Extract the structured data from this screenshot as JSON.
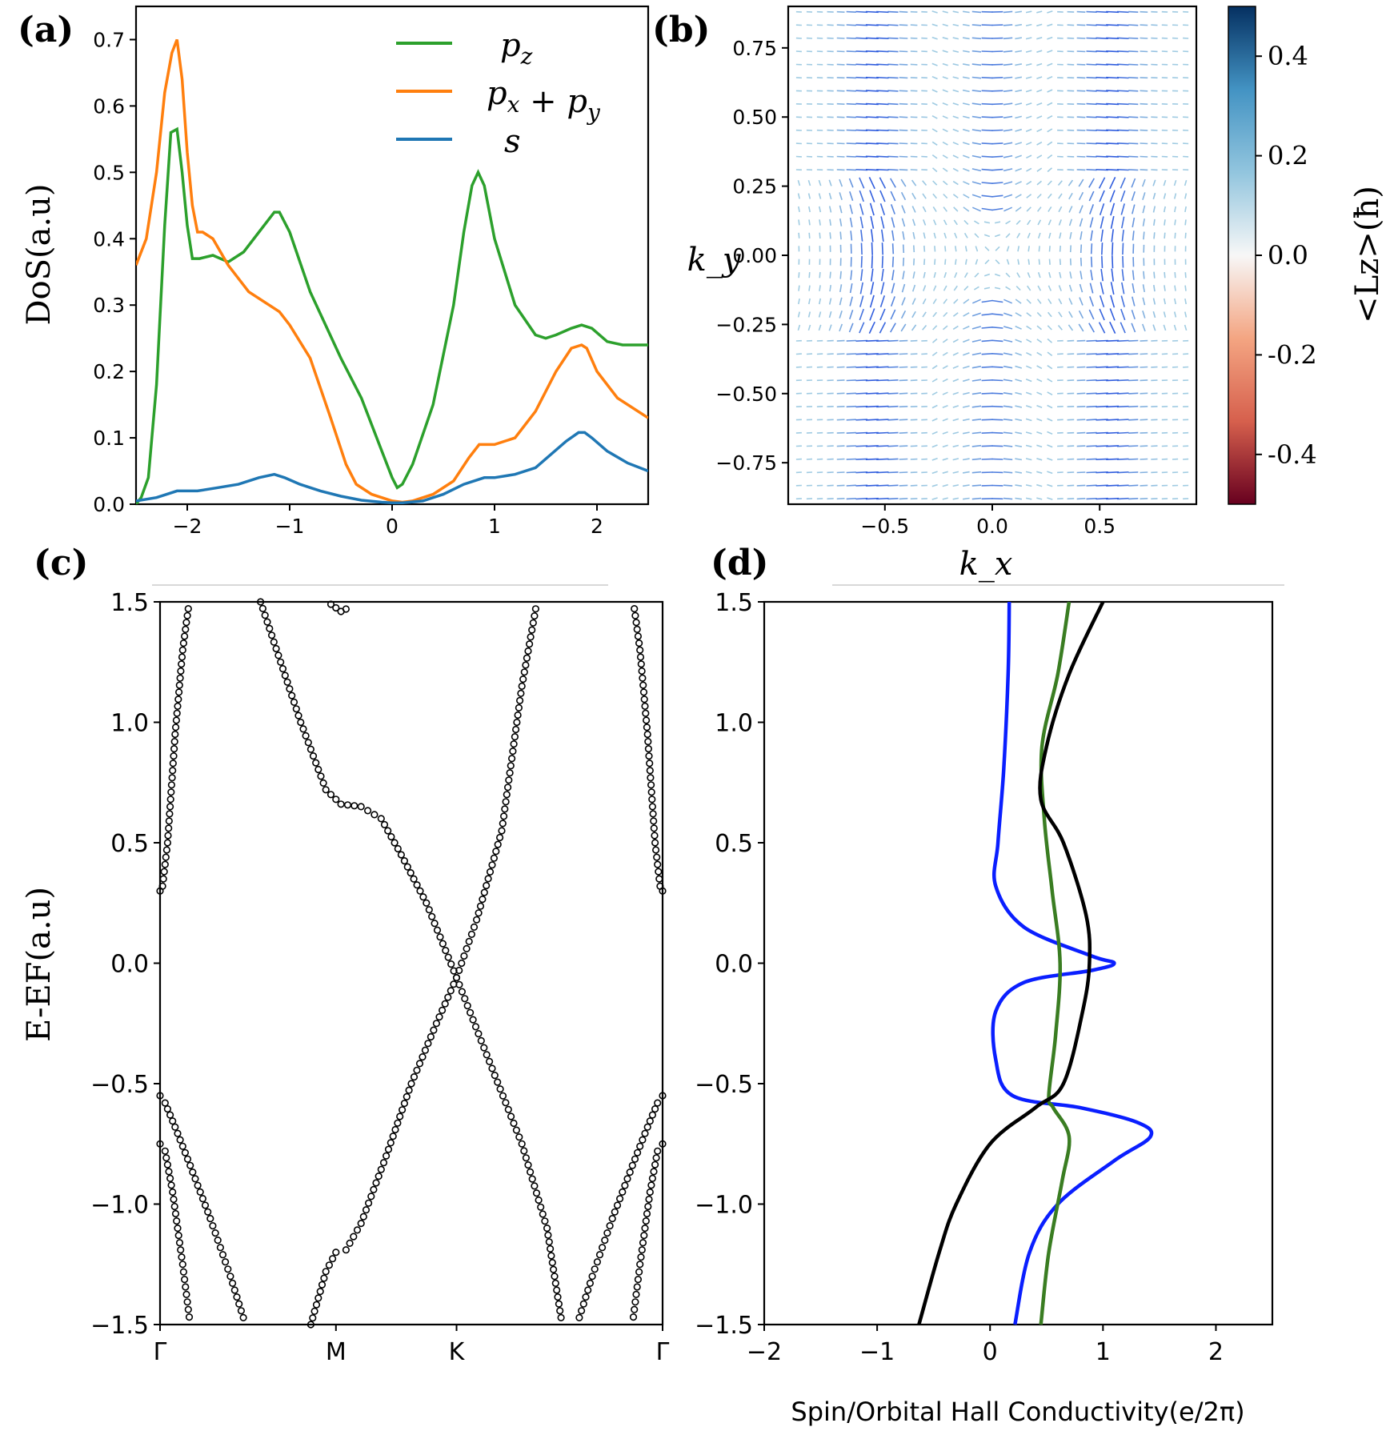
{
  "panel_labels": [
    "(a)",
    "(b)",
    "(c)",
    "(d)"
  ],
  "chart_data": [
    {
      "panel": "(a)",
      "type": "line",
      "xlabel": "",
      "ylabel": "DoS(a.u)",
      "xlim": [
        -2.5,
        2.5
      ],
      "ylim": [
        0,
        0.75
      ],
      "xticks": [
        -2,
        -1,
        0,
        1,
        2
      ],
      "xtick_labels": [
        "−2",
        "−1",
        "0",
        "1",
        "2"
      ],
      "yticks": [
        0,
        0.1,
        0.2,
        0.3,
        0.4,
        0.5,
        0.6,
        0.7
      ],
      "ytick_labels": [
        "0.0",
        "0.1",
        "0.2",
        "0.3",
        "0.4",
        "0.5",
        "0.6",
        "0.7"
      ],
      "legend": [
        "p_z",
        "p_x + p_y",
        "s"
      ],
      "legend_position": "top-right",
      "series": [
        {
          "name": "p_z",
          "color": "#2ca02c",
          "x": [
            -2.5,
            -2.45,
            -2.38,
            -2.3,
            -2.22,
            -2.16,
            -2.1,
            -2.05,
            -2.0,
            -1.95,
            -1.88,
            -1.75,
            -1.6,
            -1.45,
            -1.3,
            -1.15,
            -1.1,
            -1.0,
            -0.8,
            -0.5,
            -0.3,
            -0.1,
            0.0,
            0.05,
            0.1,
            0.2,
            0.4,
            0.6,
            0.7,
            0.78,
            0.84,
            0.9,
            1.0,
            1.2,
            1.4,
            1.5,
            1.6,
            1.75,
            1.85,
            1.95,
            2.1,
            2.25,
            2.4,
            2.5
          ],
          "values": [
            0.0,
            0.01,
            0.04,
            0.18,
            0.42,
            0.56,
            0.565,
            0.5,
            0.42,
            0.37,
            0.37,
            0.375,
            0.365,
            0.38,
            0.41,
            0.44,
            0.44,
            0.41,
            0.32,
            0.22,
            0.16,
            0.08,
            0.04,
            0.025,
            0.03,
            0.06,
            0.15,
            0.3,
            0.41,
            0.48,
            0.5,
            0.48,
            0.4,
            0.3,
            0.255,
            0.25,
            0.255,
            0.265,
            0.27,
            0.265,
            0.245,
            0.24,
            0.24,
            0.24
          ]
        },
        {
          "name": "p_x + p_y",
          "color": "#ff7f0e",
          "x": [
            -2.5,
            -2.4,
            -2.3,
            -2.22,
            -2.15,
            -2.1,
            -2.05,
            -2.0,
            -1.95,
            -1.9,
            -1.85,
            -1.75,
            -1.6,
            -1.4,
            -1.2,
            -1.1,
            -1.0,
            -0.8,
            -0.6,
            -0.45,
            -0.35,
            -0.2,
            0.0,
            0.1,
            0.2,
            0.4,
            0.6,
            0.75,
            0.85,
            1.0,
            1.2,
            1.4,
            1.6,
            1.75,
            1.85,
            1.9,
            2.0,
            2.2,
            2.5
          ],
          "values": [
            0.36,
            0.4,
            0.5,
            0.62,
            0.68,
            0.7,
            0.64,
            0.53,
            0.45,
            0.41,
            0.41,
            0.4,
            0.36,
            0.32,
            0.3,
            0.29,
            0.27,
            0.22,
            0.13,
            0.06,
            0.03,
            0.015,
            0.005,
            0.003,
            0.005,
            0.015,
            0.035,
            0.07,
            0.09,
            0.09,
            0.1,
            0.14,
            0.2,
            0.235,
            0.24,
            0.235,
            0.2,
            0.16,
            0.13
          ]
        },
        {
          "name": "s",
          "color": "#1f77b4",
          "x": [
            -2.5,
            -2.3,
            -2.2,
            -2.1,
            -1.9,
            -1.7,
            -1.5,
            -1.3,
            -1.15,
            -1.05,
            -0.9,
            -0.7,
            -0.5,
            -0.3,
            -0.1,
            0.0,
            0.1,
            0.3,
            0.5,
            0.7,
            0.9,
            1.0,
            1.2,
            1.4,
            1.55,
            1.7,
            1.82,
            1.88,
            1.95,
            2.1,
            2.3,
            2.5
          ],
          "values": [
            0.005,
            0.01,
            0.015,
            0.02,
            0.02,
            0.025,
            0.03,
            0.04,
            0.045,
            0.04,
            0.03,
            0.02,
            0.012,
            0.006,
            0.003,
            0.002,
            0.002,
            0.005,
            0.015,
            0.03,
            0.04,
            0.04,
            0.045,
            0.055,
            0.075,
            0.095,
            0.108,
            0.108,
            0.1,
            0.08,
            0.062,
            0.05
          ]
        }
      ]
    },
    {
      "panel": "(b)",
      "type": "quiver",
      "xlabel": "k_x",
      "ylabel": "k_y",
      "xlim": [
        -0.95,
        0.95
      ],
      "ylim": [
        -0.9,
        0.9
      ],
      "xticks": [
        -0.5,
        0.0,
        0.5
      ],
      "xtick_labels": [
        "−0.5",
        "0.0",
        "0.5"
      ],
      "yticks": [
        0.75,
        0.5,
        0.25,
        0.0,
        -0.25,
        -0.5,
        -0.75
      ],
      "ytick_labels": [
        "0.75",
        "0.50",
        "0.25",
        "0.00",
        "−0.25",
        "−0.50",
        "−0.75"
      ],
      "colorbar_label": "<Lz>(ħ)",
      "colorbar_range": [
        -0.5,
        0.5
      ],
      "colorbar_ticks": [
        0.4,
        0.2,
        0.0,
        -0.2,
        -0.4
      ],
      "colorbar_tick_labels": [
        "0.4",
        "0.2",
        "0.0",
        "-0.2",
        "-0.4"
      ],
      "colormap": [
        "#67001f",
        "#d6604d",
        "#f4a582",
        "#f7f7f7",
        "#92c5de",
        "#4393c3",
        "#053061"
      ]
    },
    {
      "panel": "(c)",
      "type": "scatter",
      "xlabel": "",
      "ylabel": "E-EF(a.u)",
      "ylim": [
        -1.5,
        1.5
      ],
      "yticks": [
        1.5,
        1.0,
        0.5,
        0.0,
        -0.5,
        -1.0,
        -1.5
      ],
      "ytick_labels": [
        "1.5",
        "1.0",
        "0.5",
        "0.0",
        "−0.5",
        "−1.0",
        "−1.5"
      ],
      "kpath_labels": [
        "Γ",
        "M",
        "K",
        "Γ"
      ],
      "kpath_positions": [
        0,
        0.35,
        0.59,
        1.0
      ],
      "bands": [
        {
          "x": [
            0.0,
            0.005,
            0.015,
            0.03,
            0.045,
            0.058
          ],
          "values": [
            0.3,
            0.32,
            0.5,
            0.95,
            1.3,
            1.5
          ]
        },
        {
          "x": [
            1.0,
            0.995,
            0.985,
            0.97,
            0.955,
            0.942
          ],
          "values": [
            0.3,
            0.32,
            0.5,
            0.95,
            1.3,
            1.5
          ]
        },
        {
          "x": [
            0.0,
            0.01,
            0.03,
            0.06,
            0.1,
            0.14,
            0.17
          ],
          "values": [
            -0.55,
            -0.58,
            -0.68,
            -0.84,
            -1.06,
            -1.3,
            -1.5
          ]
        },
        {
          "x": [
            1.0,
            0.99,
            0.97,
            0.94,
            0.9,
            0.86,
            0.83
          ],
          "values": [
            -0.55,
            -0.58,
            -0.68,
            -0.84,
            -1.06,
            -1.3,
            -1.5
          ]
        },
        {
          "x": [
            0.0,
            0.01,
            0.025,
            0.045,
            0.06
          ],
          "values": [
            -0.75,
            -0.78,
            -0.95,
            -1.25,
            -1.5
          ]
        },
        {
          "x": [
            1.0,
            0.99,
            0.975,
            0.955,
            0.94
          ],
          "values": [
            -0.75,
            -0.78,
            -0.95,
            -1.25,
            -1.5
          ]
        },
        {
          "x": [
            0.2,
            0.24,
            0.28,
            0.33,
            0.36,
            0.4,
            0.44,
            0.48,
            0.53,
            0.59,
            0.65,
            0.72,
            0.77,
            0.8
          ],
          "values": [
            1.5,
            1.25,
            1.0,
            0.72,
            0.66,
            0.65,
            0.6,
            0.45,
            0.25,
            -0.06,
            -0.38,
            -0.75,
            -1.1,
            -1.5
          ]
        },
        {
          "x": [
            0.3,
            0.33,
            0.35,
            0.37,
            0.4,
            0.45,
            0.5,
            0.55,
            0.59,
            0.63,
            0.68,
            0.72,
            0.75
          ],
          "values": [
            -1.5,
            -1.28,
            -1.2,
            -1.19,
            -1.08,
            -0.8,
            -0.5,
            -0.25,
            -0.06,
            0.18,
            0.55,
            1.15,
            1.5
          ]
        },
        {
          "x": [
            0.34,
            0.36,
            0.38
          ],
          "values": [
            1.49,
            1.46,
            1.48
          ]
        }
      ]
    },
    {
      "panel": "(d)",
      "type": "line",
      "xlabel": "Spin/Orbital Hall Conductivity(e/2π)",
      "ylabel": "",
      "xlim": [
        -2,
        2.5
      ],
      "ylim": [
        -1.5,
        1.5
      ],
      "xticks": [
        -2,
        -1,
        0,
        1,
        2
      ],
      "xtick_labels": [
        "−2",
        "−1",
        "0",
        "1",
        "2"
      ],
      "yticks": [
        1.5,
        1.0,
        0.5,
        0.0,
        -0.5,
        -1.0,
        -1.5
      ],
      "ytick_labels": [
        "1.5",
        "1.0",
        "0.5",
        "0.0",
        "−0.5",
        "−1.0",
        "−1.5"
      ],
      "series": [
        {
          "name": "blue",
          "color": "#0a1fff",
          "values": [
            1.5,
            1.2,
            0.8,
            0.5,
            0.32,
            0.15,
            0.03,
            0.0,
            -0.03,
            -0.08,
            -0.2,
            -0.4,
            -0.55,
            -0.6,
            -0.66,
            -0.72,
            -0.82,
            -1.0,
            -1.2,
            -1.5
          ],
          "x": [
            0.17,
            0.16,
            0.12,
            0.07,
            0.05,
            0.3,
            0.9,
            1.1,
            0.9,
            0.3,
            0.05,
            0.05,
            0.2,
            0.8,
            1.3,
            1.42,
            1.1,
            0.6,
            0.35,
            0.22
          ]
        },
        {
          "name": "green",
          "color": "#3a7d22",
          "values": [
            1.5,
            1.2,
            0.9,
            0.6,
            0.3,
            0.0,
            -0.3,
            -0.55,
            -0.6,
            -0.72,
            -0.9,
            -1.2,
            -1.5
          ],
          "x": [
            0.7,
            0.6,
            0.46,
            0.48,
            0.55,
            0.62,
            0.58,
            0.52,
            0.56,
            0.7,
            0.64,
            0.52,
            0.45
          ]
        },
        {
          "name": "black",
          "color": "#000000",
          "values": [
            1.5,
            1.2,
            0.9,
            0.68,
            0.5,
            0.2,
            0.0,
            -0.2,
            -0.5,
            -0.6,
            -0.75,
            -1.0,
            -1.2,
            -1.5
          ],
          "x": [
            1.0,
            0.7,
            0.5,
            0.45,
            0.65,
            0.85,
            0.88,
            0.82,
            0.65,
            0.4,
            0.0,
            -0.3,
            -0.45,
            -0.63
          ]
        }
      ]
    }
  ]
}
